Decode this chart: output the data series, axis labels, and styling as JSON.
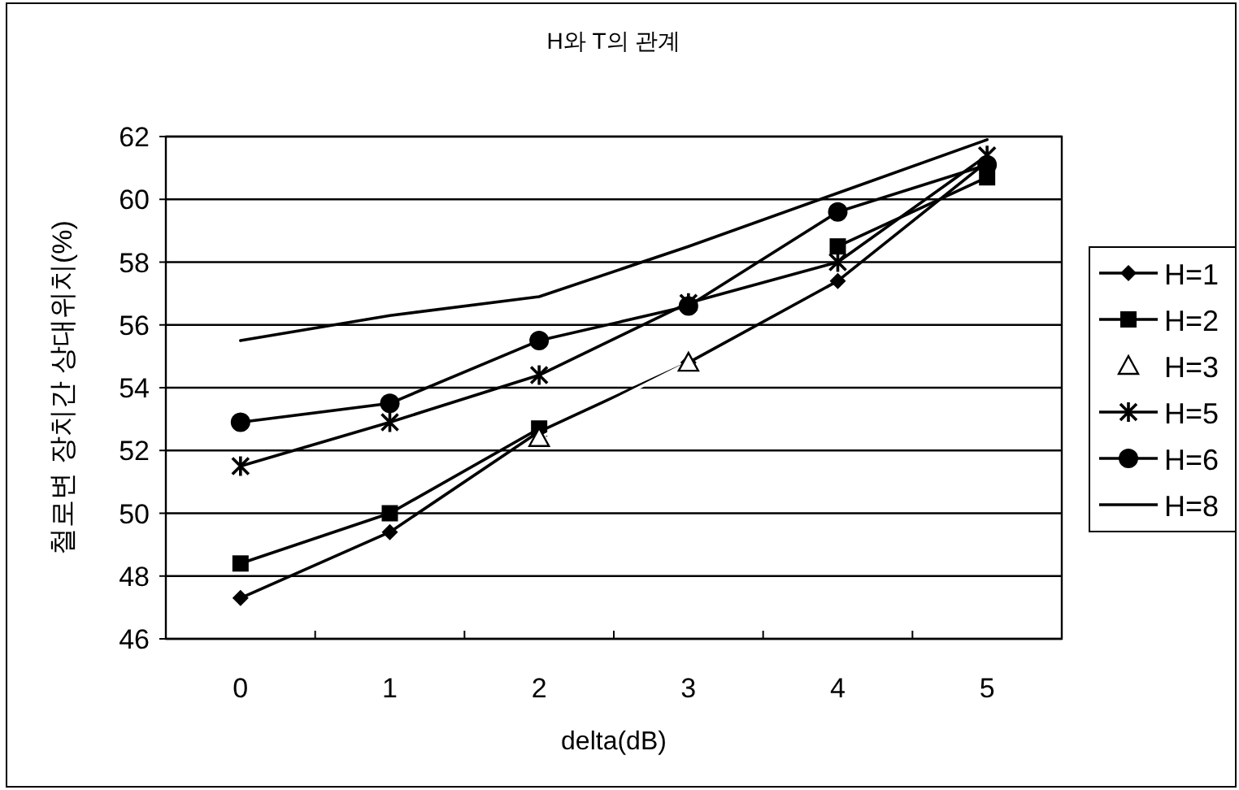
{
  "chart_data": {
    "type": "line",
    "title": "H와 T의 관계",
    "xlabel": "delta(dB)",
    "ylabel": "철로변 장치간 상대위치(%)",
    "categories": [
      "0",
      "1",
      "2",
      "3",
      "4",
      "5"
    ],
    "series": [
      {
        "name": "H=1",
        "color": "#000000",
        "marker": "diamond",
        "values": [
          47.3,
          49.4,
          52.6,
          54.8,
          57.4,
          61.2
        ]
      },
      {
        "name": "H=2",
        "color": "#000000",
        "marker": "square",
        "values": [
          48.4,
          50.0,
          52.7,
          null,
          58.5,
          60.7
        ]
      },
      {
        "name": "H=3",
        "color": "#ffffff",
        "marker": "triangle",
        "values": [
          null,
          null,
          52.4,
          54.8,
          null,
          null
        ]
      },
      {
        "name": "H=5",
        "color": "#000000",
        "marker": "cross",
        "values": [
          51.5,
          52.9,
          54.4,
          56.7,
          58.0,
          61.4
        ]
      },
      {
        "name": "H=6",
        "color": "#000000",
        "marker": "circle",
        "values": [
          52.9,
          53.5,
          55.5,
          56.6,
          59.6,
          61.1
        ]
      },
      {
        "name": "H=8",
        "color": "#000000",
        "marker": "none",
        "values": [
          55.5,
          56.3,
          56.9,
          58.5,
          60.2,
          61.9
        ]
      }
    ],
    "ylim": [
      46,
      62
    ],
    "yticks": [
      46,
      48,
      50,
      52,
      54,
      56,
      58,
      60,
      62
    ],
    "grid": "y",
    "legend": "right"
  }
}
